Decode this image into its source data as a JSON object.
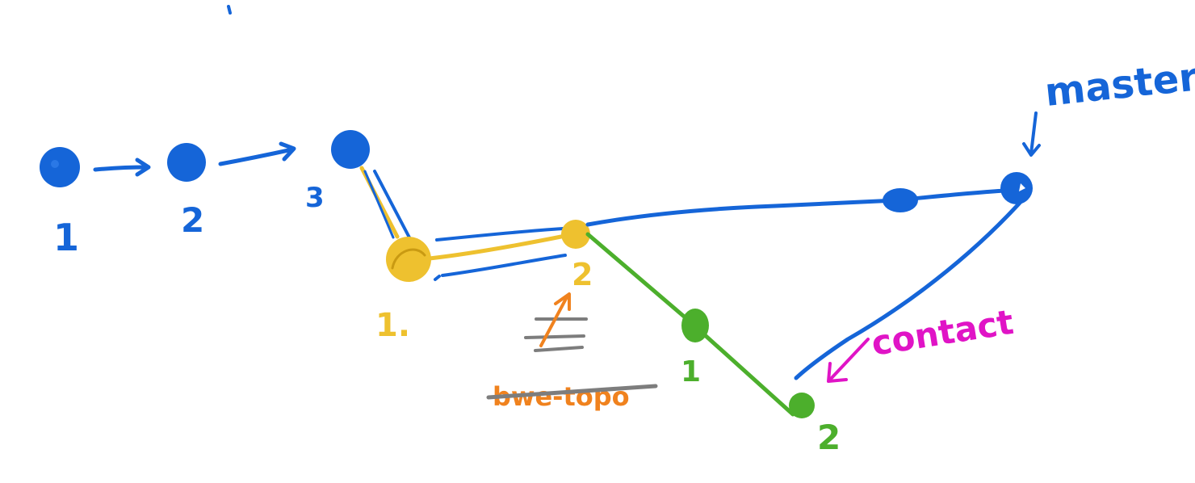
{
  "colors": {
    "blue": "#1565d8",
    "yellow": "#eec12f",
    "green": "#4caf2c",
    "magenta": "#e014c6",
    "orange": "#f0821e",
    "gray": "#7d7d7d",
    "background": "#ffffff"
  },
  "labels": {
    "c1": "1",
    "c2": "2",
    "c3": "3",
    "y1": "1.",
    "y2": "2",
    "g1": "1",
    "g2": "2",
    "master": "master",
    "contact": "contact",
    "struck_word": "bwe-topo"
  }
}
